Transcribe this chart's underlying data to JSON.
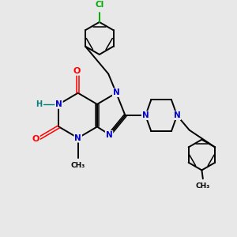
{
  "background_color": "#e8e8e8",
  "bond_color": "#000000",
  "atom_colors": {
    "N": "#0000cc",
    "O": "#ff0000",
    "Cl": "#00aa00",
    "H": "#008080",
    "C": "#000000"
  },
  "figsize": [
    3.0,
    3.0
  ],
  "dpi": 100,
  "xlim": [
    0,
    10
  ],
  "ylim": [
    0,
    10
  ]
}
